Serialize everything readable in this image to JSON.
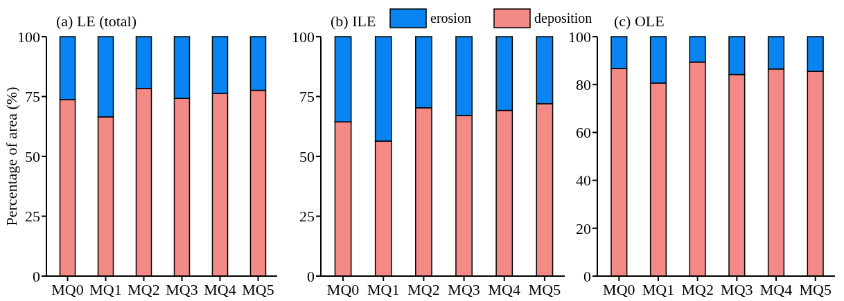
{
  "chart_data": [
    {
      "type": "bar",
      "title": "(a) LE (total)",
      "ylabel": "Percentage of area (%)",
      "categories": [
        "MQ0",
        "MQ1",
        "MQ2",
        "MQ3",
        "MQ4",
        "MQ5"
      ],
      "stacked": true,
      "ylim": [
        0,
        100
      ],
      "yticks": [
        0,
        25,
        50,
        75,
        100
      ],
      "series": [
        {
          "color": "#f48a86",
          "values": [
            73.7,
            66.5,
            78.4,
            74.2,
            76.3,
            77.6
          ]
        },
        {
          "color": "#0a84f0",
          "values": [
            26.3,
            33.5,
            21.6,
            25.8,
            23.7,
            22.4
          ]
        }
      ]
    },
    {
      "type": "bar",
      "title": "(b) ILE",
      "categories": [
        "MQ0",
        "MQ1",
        "MQ2",
        "MQ3",
        "MQ4",
        "MQ5"
      ],
      "stacked": true,
      "ylim": [
        0,
        100
      ],
      "yticks": [
        0,
        25,
        50,
        75,
        100
      ],
      "legend": "top",
      "series": [
        {
          "name": "deposition",
          "color": "#f48a86",
          "values": [
            64.4,
            56.4,
            70.3,
            67.1,
            69.2,
            72.0
          ]
        },
        {
          "name": "erosion",
          "color": "#0a84f0",
          "values": [
            35.6,
            43.6,
            29.7,
            32.9,
            30.8,
            28.0
          ]
        }
      ]
    },
    {
      "type": "bar",
      "title": "(c) OLE",
      "categories": [
        "MQ0",
        "MQ1",
        "MQ2",
        "MQ3",
        "MQ4",
        "MQ5"
      ],
      "stacked": true,
      "ylim": [
        0,
        100
      ],
      "yticks": [
        0,
        20,
        40,
        60,
        80,
        100
      ],
      "series": [
        {
          "color": "#f48a86",
          "values": [
            86.7,
            80.6,
            89.4,
            84.2,
            86.5,
            85.5
          ]
        },
        {
          "color": "#0a84f0",
          "values": [
            13.3,
            19.4,
            10.6,
            15.8,
            13.5,
            14.5
          ]
        }
      ]
    }
  ]
}
